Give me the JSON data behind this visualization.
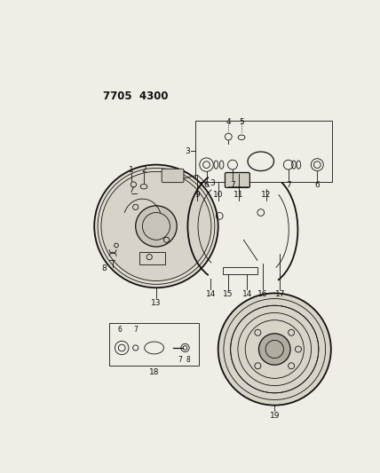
{
  "title": "7705  4300",
  "bg_color": "#f0ede6",
  "text_color": "#111111",
  "lw_thin": 0.6,
  "lw_med": 0.9,
  "lw_thick": 1.3
}
